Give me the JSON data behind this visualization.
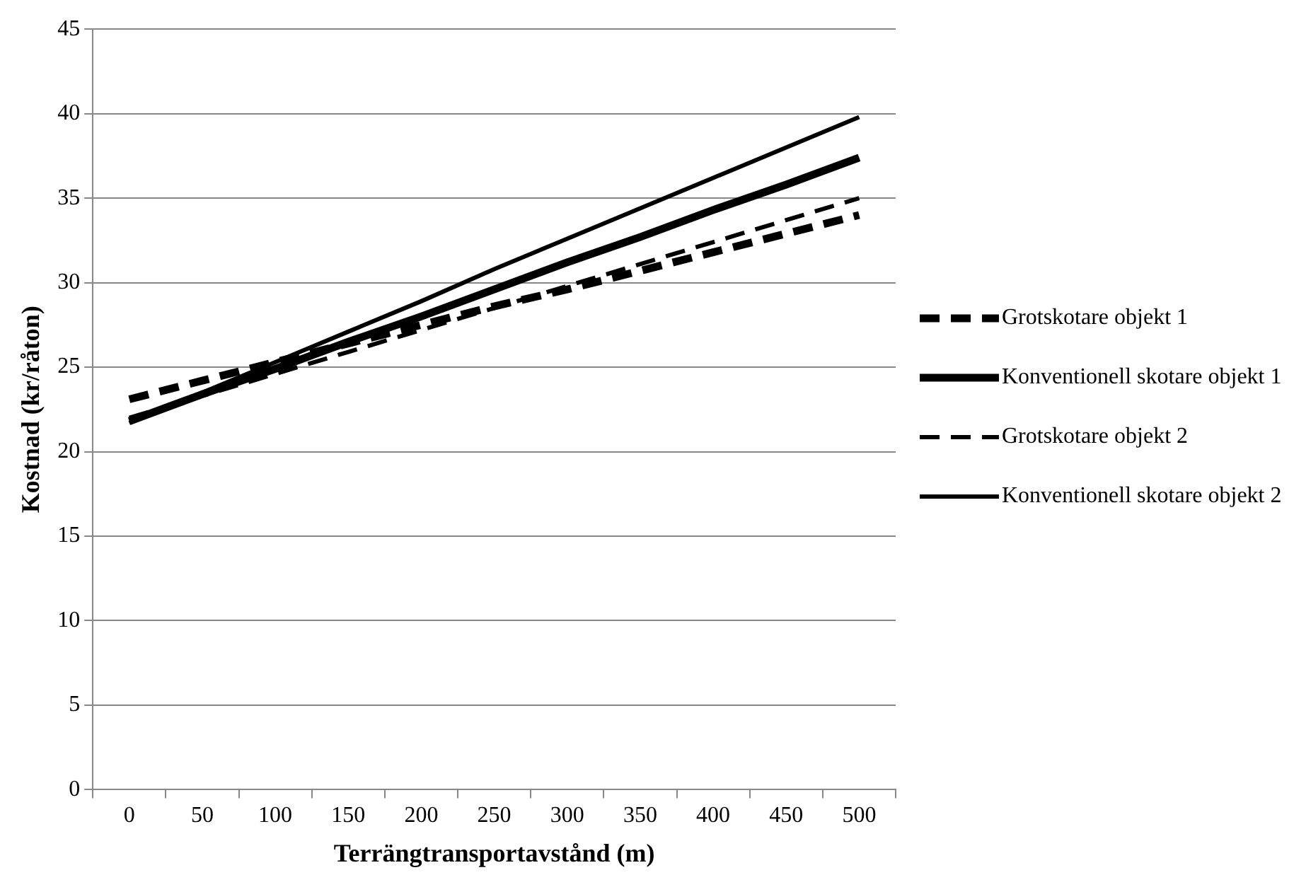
{
  "chart_data": {
    "type": "line",
    "xlabel": "Terrängtransportavstånd (m)",
    "ylabel": "Kostnad (kr/råton)",
    "categories": [
      "0",
      "50",
      "100",
      "150",
      "200",
      "250",
      "300",
      "350",
      "400",
      "450",
      "500"
    ],
    "series": [
      {
        "name": "Grotskotare objekt 1",
        "color": "#000000",
        "line_style": "dashed",
        "values": [
          23.1,
          24.2,
          25.3,
          26.4,
          27.5,
          28.6,
          29.6,
          30.7,
          31.8,
          32.9,
          34.0
        ]
      },
      {
        "name": "Konventionell skotare objekt 1",
        "color": "#000000",
        "line_style": "solid",
        "values": [
          21.8,
          23.4,
          24.9,
          26.5,
          28.0,
          29.6,
          31.2,
          32.7,
          34.3,
          35.8,
          37.4
        ]
      },
      {
        "name": "Grotskotare objekt 2",
        "color": "#000000",
        "line_style": "dashed",
        "values": [
          22.0,
          23.3,
          24.6,
          25.9,
          27.2,
          28.5,
          29.8,
          31.1,
          32.4,
          33.7,
          35.0
        ]
      },
      {
        "name": "Konventionell skotare objekt 2",
        "color": "#000000",
        "line_style": "solid",
        "values": [
          21.7,
          23.5,
          25.3,
          27.1,
          28.9,
          30.8,
          32.6,
          34.4,
          36.2,
          38.0,
          39.8
        ]
      }
    ],
    "ylim": [
      0,
      45
    ],
    "yticks": [
      0,
      5,
      10,
      15,
      20,
      25,
      30,
      35,
      40,
      45
    ],
    "grid": "y",
    "legend": "right",
    "marker": "none"
  }
}
